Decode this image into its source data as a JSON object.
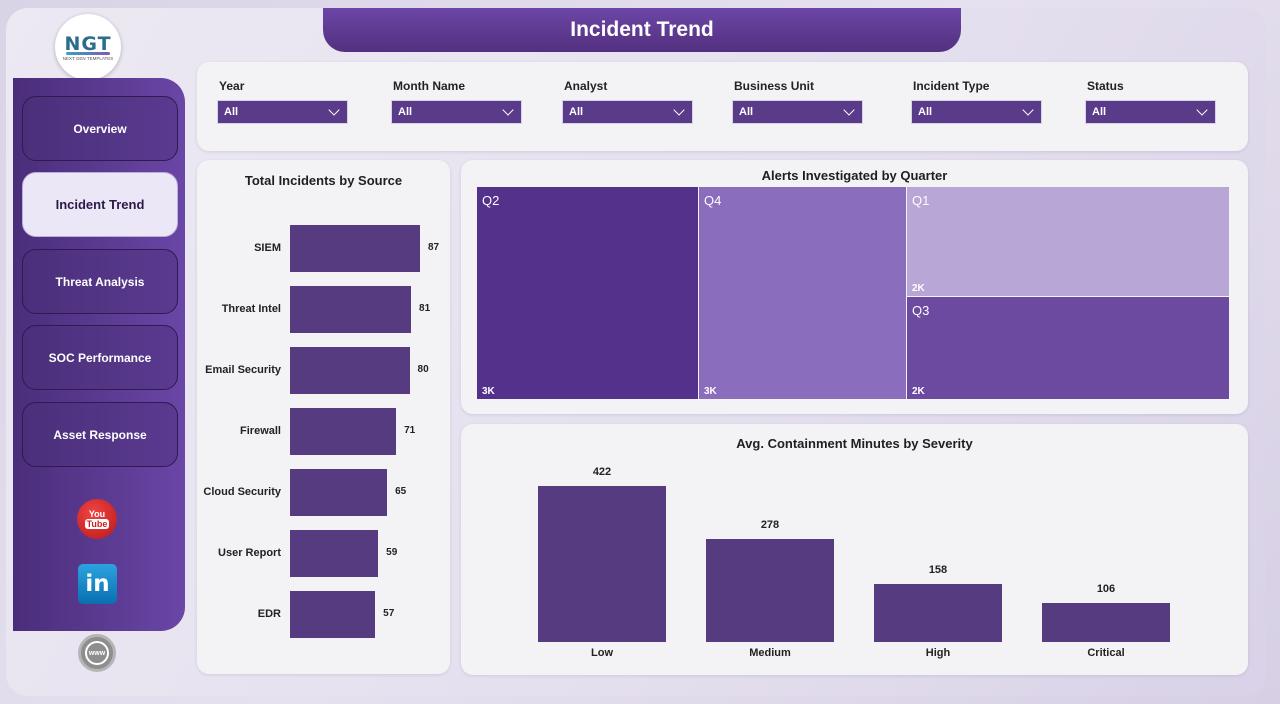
{
  "header": {
    "title": "Incident Trend"
  },
  "logo": {
    "text": "NGT",
    "tagline": "NEXT GEN TEMPLATES"
  },
  "sidebar": {
    "items": [
      {
        "label": "Overview",
        "active": false
      },
      {
        "label": "Incident Trend",
        "active": true
      },
      {
        "label": "Threat Analysis",
        "active": false
      },
      {
        "label": "SOC Performance",
        "active": false
      },
      {
        "label": "Asset Response",
        "active": false
      }
    ],
    "social": [
      {
        "name": "youtube-icon",
        "text_top": "You",
        "text_bottom": "Tube"
      },
      {
        "name": "linkedin-icon",
        "text": "in"
      },
      {
        "name": "website-icon",
        "text": "www"
      }
    ]
  },
  "filters": [
    {
      "label": "Year",
      "value": "All"
    },
    {
      "label": "Month Name",
      "value": "All"
    },
    {
      "label": "Analyst",
      "value": "All"
    },
    {
      "label": "Business Unit",
      "value": "All"
    },
    {
      "label": "Incident Type",
      "value": "All"
    },
    {
      "label": "Status",
      "value": "All"
    }
  ],
  "colors": {
    "primary": "#563b80",
    "header": "#5e3a90",
    "sidebar": "#5a3a90"
  },
  "chart_data": [
    {
      "type": "bar",
      "orientation": "horizontal",
      "title": "Total Incidents by Source",
      "categories": [
        "SIEM",
        "Threat Intel",
        "Email Security",
        "Firewall",
        "Cloud Security",
        "User Report",
        "EDR"
      ],
      "values": [
        87,
        81,
        80,
        71,
        65,
        59,
        57
      ]
    },
    {
      "type": "treemap",
      "title": "Alerts Investigated by Quarter",
      "categories": [
        "Q2",
        "Q4",
        "Q1",
        "Q3"
      ],
      "labels": [
        "3K",
        "3K",
        "2K",
        "2K"
      ],
      "colors": [
        "#54318a",
        "#8a6dbc",
        "#b8a6d6",
        "#6c4aa0"
      ]
    },
    {
      "type": "bar",
      "title": "Avg. Containment Minutes by Severity",
      "categories": [
        "Low",
        "Medium",
        "High",
        "Critical"
      ],
      "values": [
        422,
        278,
        158,
        106
      ]
    }
  ]
}
